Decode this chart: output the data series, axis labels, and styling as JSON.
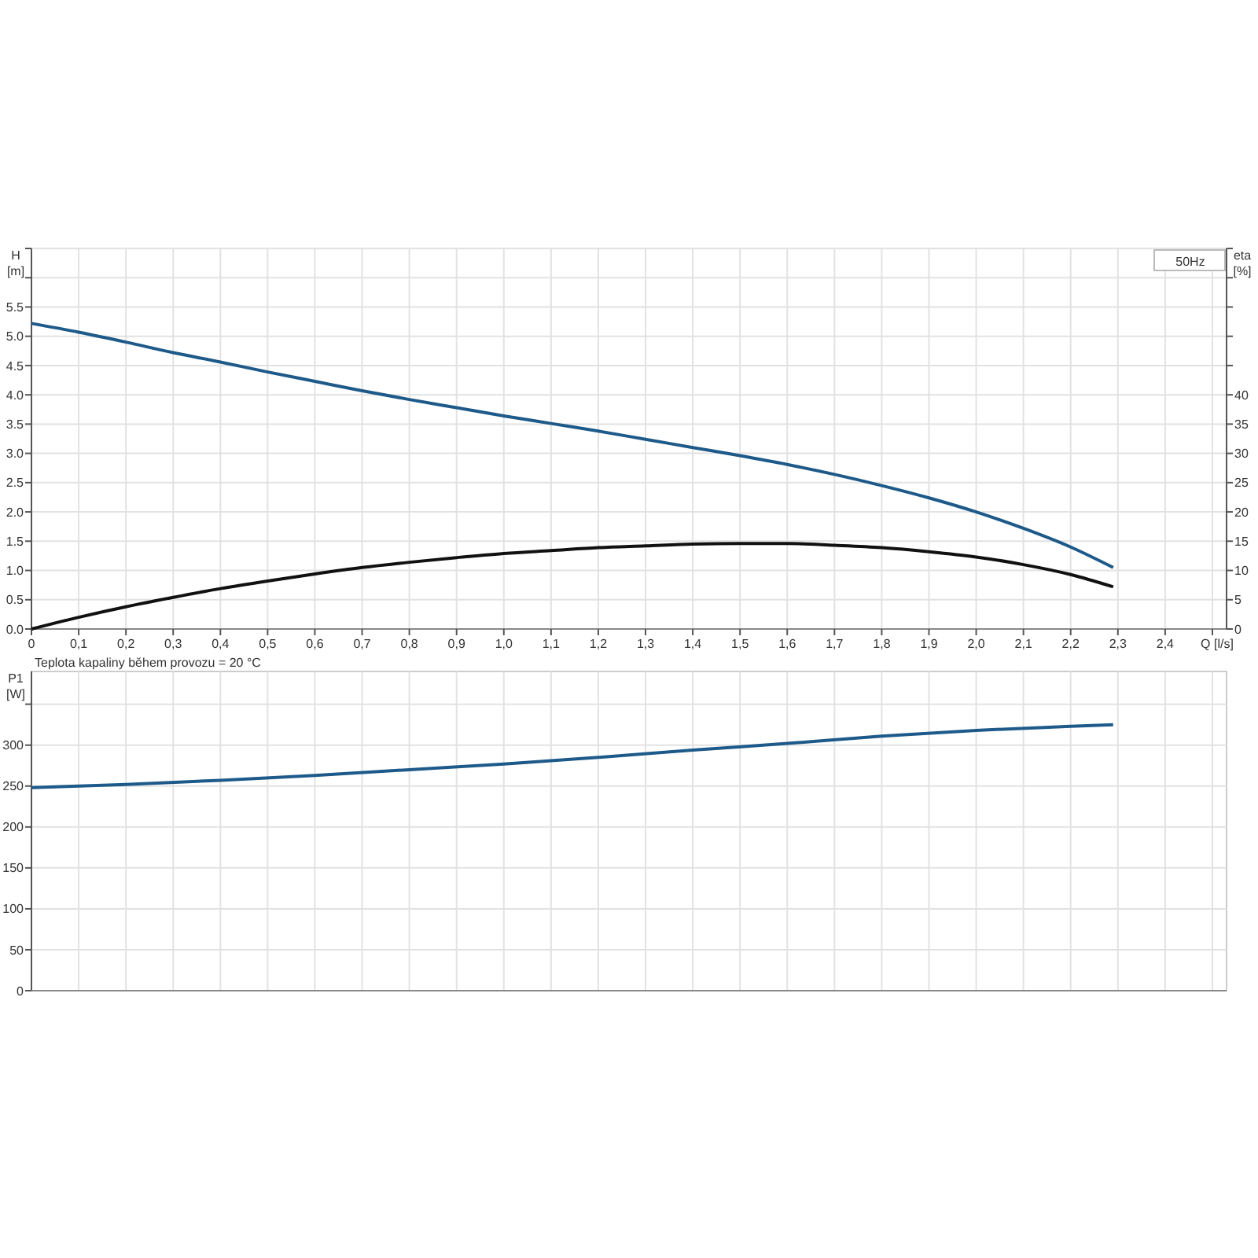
{
  "chart_data": [
    {
      "type": "line",
      "xlabel": "Q [l/s]",
      "ylabel": "H [m]",
      "y2label": "eta [%]",
      "grid": true,
      "annotations": [
        "50Hz",
        "Teplota kapaliny během provozu = 20 °C"
      ],
      "xlim": [
        0,
        2.53
      ],
      "xticks": [
        0,
        {
          "value": 0.1,
          "label": "0,1"
        },
        {
          "value": 0.2,
          "label": "0,2"
        },
        {
          "value": 0.3,
          "label": "0,3"
        },
        {
          "value": 0.4,
          "label": "0,4"
        },
        {
          "value": 0.5,
          "label": "0,5"
        },
        {
          "value": 0.6,
          "label": "0,6"
        },
        {
          "value": 0.7,
          "label": "0,7"
        },
        {
          "value": 0.8,
          "label": "0,8"
        },
        {
          "value": 0.9,
          "label": "0,9"
        },
        {
          "value": 1,
          "label": "1,0"
        },
        {
          "value": 1.1,
          "label": "1,1"
        },
        {
          "value": 1.2,
          "label": "1,2"
        },
        {
          "value": 1.3,
          "label": "1,3"
        },
        {
          "value": 1.4,
          "label": "1,4"
        },
        {
          "value": 1.5,
          "label": "1,5"
        },
        {
          "value": 1.6,
          "label": "1,6"
        },
        {
          "value": 1.7,
          "label": "1,7"
        },
        {
          "value": 1.8,
          "label": "1,8"
        },
        {
          "value": 1.9,
          "label": "1,9"
        },
        {
          "value": 2,
          "label": "2,0"
        },
        {
          "value": 2.1,
          "label": "2,1"
        },
        {
          "value": 2.2,
          "label": "2,2"
        },
        {
          "value": 2.3,
          "label": "2,3"
        },
        {
          "value": 2.4,
          "label": "2,4"
        },
        {
          "value": 2.5,
          "label": null
        }
      ],
      "ylim": [
        0,
        6.5
      ],
      "yticks": [
        {
          "value": 0,
          "label": "0.0"
        },
        0.5,
        {
          "value": 1,
          "label": "1.0"
        },
        1.5,
        {
          "value": 2,
          "label": "2.0"
        },
        2.5,
        {
          "value": 3,
          "label": "3.0"
        },
        3.5,
        {
          "value": 4,
          "label": "4.0"
        },
        4.5,
        {
          "value": 5,
          "label": "5.0"
        },
        5.5,
        {
          "value": 6,
          "label": null
        },
        {
          "value": 6.5,
          "label": null
        }
      ],
      "y2lim": [
        0,
        65
      ],
      "y2ticks": [
        0,
        5,
        10,
        15,
        20,
        25,
        30,
        35,
        40,
        {
          "value": 45,
          "label": null
        },
        {
          "value": 50,
          "label": null
        },
        {
          "value": 55,
          "label": null
        },
        {
          "value": 60,
          "label": null
        },
        {
          "value": 65,
          "label": null
        }
      ],
      "x": [
        0,
        0.1,
        0.2,
        0.3,
        0.4,
        0.5,
        0.6,
        0.7,
        0.8,
        0.9,
        1.0,
        1.1,
        1.2,
        1.3,
        1.4,
        1.5,
        1.6,
        1.7,
        1.8,
        1.9,
        2.0,
        2.1,
        2.2,
        2.29
      ],
      "series": [
        {
          "color": "#1d5a8a",
          "values": [
            5.22,
            5.07,
            4.9,
            4.72,
            4.56,
            4.39,
            4.23,
            4.07,
            3.92,
            3.78,
            3.64,
            3.51,
            3.38,
            3.24,
            3.1,
            2.96,
            2.81,
            2.64,
            2.45,
            2.24,
            2.0,
            1.72,
            1.4,
            1.05
          ]
        },
        {
          "color": "#111111",
          "axis": "y2",
          "values": [
            0,
            2.0,
            3.8,
            5.4,
            6.9,
            8.2,
            9.4,
            10.5,
            11.4,
            12.2,
            12.9,
            13.4,
            13.9,
            14.2,
            14.5,
            14.6,
            14.6,
            14.3,
            13.9,
            13.2,
            12.3,
            11.0,
            9.3,
            7.2
          ]
        }
      ]
    },
    {
      "type": "line",
      "ylabel": "P1 [W]",
      "grid": true,
      "tick_labels": "y",
      "xlim": [
        0,
        2.53
      ],
      "xticks": [
        0,
        0.1,
        0.2,
        0.3,
        0.4,
        0.5,
        0.6,
        0.7,
        0.8,
        0.9,
        1,
        1.1,
        1.2,
        1.3,
        1.4,
        1.5,
        1.6,
        1.7,
        1.8,
        1.9,
        2,
        2.1,
        2.2,
        2.3,
        2.4,
        2.5
      ],
      "ylim": [
        0,
        390
      ],
      "yticks": [
        0,
        50,
        100,
        150,
        200,
        250,
        300,
        {
          "value": 350,
          "label": null
        }
      ],
      "x": [
        0,
        0.2,
        0.4,
        0.6,
        0.8,
        1.0,
        1.2,
        1.4,
        1.6,
        1.8,
        2.0,
        2.2,
        2.29
      ],
      "series": [
        {
          "color": "#1d5a8a",
          "values": [
            248,
            252,
            257,
            263,
            270,
            277,
            285,
            294,
            302,
            311,
            318,
            323,
            325
          ]
        }
      ]
    }
  ]
}
